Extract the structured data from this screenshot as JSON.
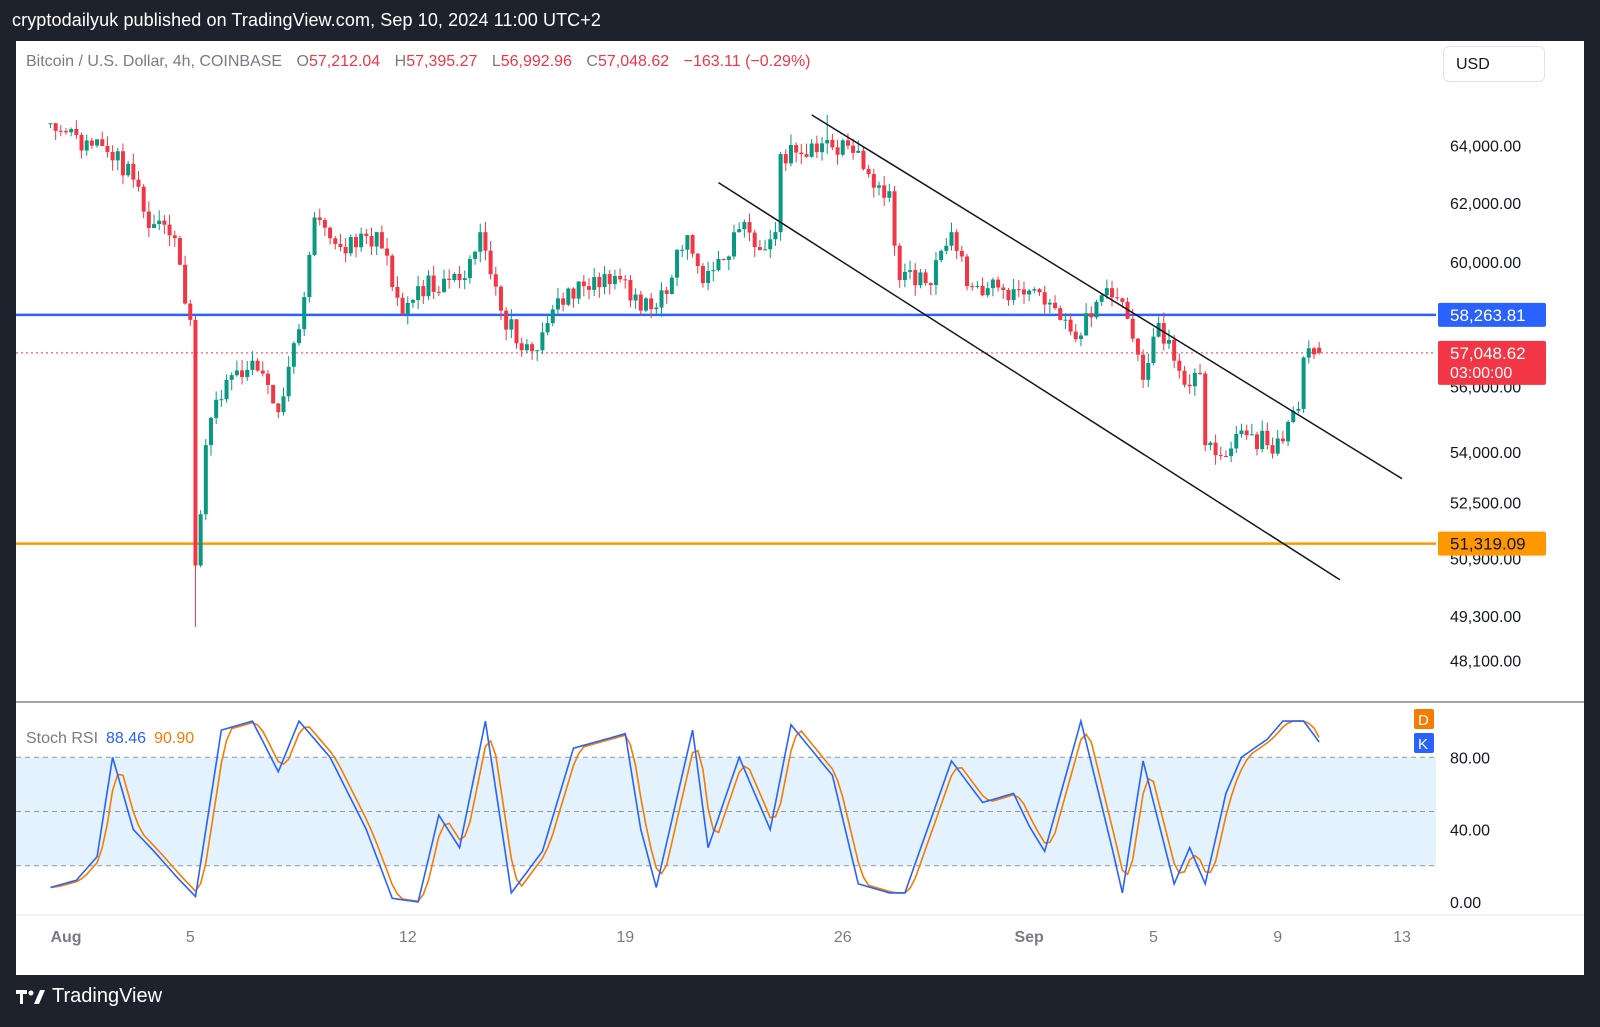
{
  "header": {
    "published_text": "cryptodailyuk published on TradingView.com, Sep 10, 2024 11:00 UTC+2"
  },
  "legend": {
    "symbol": "Bitcoin / U.S. Dollar, 4h, COINBASE",
    "open_label": "O",
    "open": "57,212.04",
    "high_label": "H",
    "high": "57,395.27",
    "low_label": "L",
    "low": "56,992.96",
    "close_label": "C",
    "close": "57,048.62",
    "change": "−163.11 (−0.29%)"
  },
  "currency_button": {
    "label": "USD"
  },
  "stoch_legend": {
    "name": "Stoch RSI",
    "k_value": "88.46",
    "d_value": "90.90"
  },
  "footer": {
    "brand": "TradingView",
    "logo_icon": "tradingview-logo-icon"
  },
  "colors": {
    "up": "#089981",
    "down": "#f23645",
    "resistance": "#2962ff",
    "support": "#ff9800",
    "k_line": "#2962ff",
    "d_line": "#f57c00",
    "band_fill": "#e3f2fd",
    "page_bg": "#1e222d"
  },
  "chart_data": [
    {
      "type": "candlestick",
      "title": "Bitcoin / U.S. Dollar, 4h, COINBASE",
      "x_ticks": [
        "Aug",
        "5",
        "12",
        "19",
        "26",
        "Sep",
        "5",
        "9",
        "13"
      ],
      "y_ticks": [
        "64,000.00",
        "62,000.00",
        "60,000.00",
        "58,263.81",
        "57,048.62",
        "56,000.00",
        "54,000.00",
        "52,500.00",
        "51,319.09",
        "50,900.00",
        "49,300.00",
        "48,100.00"
      ],
      "y_tick_values": [
        64000,
        62000,
        60000,
        56000,
        54000,
        52500,
        50900,
        49300,
        48100
      ],
      "ylim": [
        47000,
        66300
      ],
      "y_scale": "log",
      "price_labels": [
        {
          "value": 58263.81,
          "text": "58,263.81",
          "color": "#2962ff"
        },
        {
          "value": 57048.62,
          "text": "57,048.62",
          "sub": "03:00:00",
          "color": "#f23645"
        },
        {
          "value": 51319.09,
          "text": "51,319.09",
          "color": "#ff9800"
        }
      ],
      "horizontal_lines": [
        {
          "name": "resistance",
          "value": 58263.81,
          "color": "#2962ff"
        },
        {
          "name": "support",
          "value": 51319.09,
          "color": "#ff9800"
        },
        {
          "name": "last-price",
          "value": 57048.62,
          "color": "#f23645",
          "style": "dotted"
        }
      ],
      "trend_lines": [
        {
          "name": "channel-upper",
          "from": [
            "Aug 25",
            65100
          ],
          "to": [
            "Sep 13",
            53200
          ]
        },
        {
          "name": "channel-lower",
          "from": [
            "Aug 22",
            62700
          ],
          "to": [
            "Sep 11",
            50300
          ]
        }
      ],
      "anchors": [
        {
          "date": "Jul 31 12:00",
          "price": 64800
        },
        {
          "date": "Aug 1 20:00",
          "price": 64000
        },
        {
          "date": "Aug 2 16:00",
          "price": 63800
        },
        {
          "date": "Aug 3 12:00",
          "price": 61700
        },
        {
          "date": "Aug 4 12:00",
          "price": 60800
        },
        {
          "date": "Aug 5 00:00",
          "price": 58100
        },
        {
          "date": "Aug 5 04:00",
          "price": 50700
        },
        {
          "date": "Aug 5 12:00",
          "price": 54200
        },
        {
          "date": "Aug 6 04:00",
          "price": 56200
        },
        {
          "date": "Aug 7 00:00",
          "price": 56800
        },
        {
          "date": "Aug 7 20:00",
          "price": 55200
        },
        {
          "date": "Aug 8 12:00",
          "price": 57800
        },
        {
          "date": "Aug 9 00:00",
          "price": 61500
        },
        {
          "date": "Aug 9 20:00",
          "price": 60500
        },
        {
          "date": "Aug 11 00:00",
          "price": 61000
        },
        {
          "date": "Aug 11 20:00",
          "price": 58300
        },
        {
          "date": "Aug 12 08:00",
          "price": 59200
        },
        {
          "date": "Aug 13 16:00",
          "price": 59400
        },
        {
          "date": "Aug 14 08:00",
          "price": 61000
        },
        {
          "date": "Aug 15 00:00",
          "price": 58400
        },
        {
          "date": "Aug 16 00:00",
          "price": 57100
        },
        {
          "date": "Aug 16 20:00",
          "price": 58800
        },
        {
          "date": "Aug 18 00:00",
          "price": 59500
        },
        {
          "date": "Aug 19 00:00",
          "price": 59400
        },
        {
          "date": "Aug 19 12:00",
          "price": 58400
        },
        {
          "date": "Aug 20 00:00",
          "price": 58500
        },
        {
          "date": "Aug 21 00:00",
          "price": 60900
        },
        {
          "date": "Aug 21 12:00",
          "price": 59300
        },
        {
          "date": "Aug 22 00:00",
          "price": 60100
        },
        {
          "date": "Aug 22 16:00",
          "price": 61100
        },
        {
          "date": "Aug 23 08:00",
          "price": 60400
        },
        {
          "date": "Aug 23 20:00",
          "price": 61000
        },
        {
          "date": "Aug 24 00:00",
          "price": 63700
        },
        {
          "date": "Aug 25 12:00",
          "price": 64200
        },
        {
          "date": "Aug 26 04:00",
          "price": 64000
        },
        {
          "date": "Aug 26 20:00",
          "price": 63000
        },
        {
          "date": "Aug 27 12:00",
          "price": 62400
        },
        {
          "date": "Aug 27 20:00",
          "price": 59400
        },
        {
          "date": "Aug 28 16:00",
          "price": 59300
        },
        {
          "date": "Aug 29 12:00",
          "price": 61000
        },
        {
          "date": "Aug 30 00:00",
          "price": 59200
        },
        {
          "date": "Aug 31 12:00",
          "price": 59100
        },
        {
          "date": "Sep 1 12:00",
          "price": 58600
        },
        {
          "date": "Sep 2 00:00",
          "price": 58100
        },
        {
          "date": "Sep 2 16:00",
          "price": 57600
        },
        {
          "date": "Sep 3 08:00",
          "price": 58900
        },
        {
          "date": "Sep 3 20:00",
          "price": 58800
        },
        {
          "date": "Sep 4 08:00",
          "price": 57500
        },
        {
          "date": "Sep 4 16:00",
          "price": 56200
        },
        {
          "date": "Sep 5 04:00",
          "price": 58000
        },
        {
          "date": "Sep 5 16:00",
          "price": 56800
        },
        {
          "date": "Sep 6 04:00",
          "price": 56000
        },
        {
          "date": "Sep 6 12:00",
          "price": 56400
        },
        {
          "date": "Sep 6 16:00",
          "price": 54200
        },
        {
          "date": "Sep 7 00:00",
          "price": 53900
        },
        {
          "date": "Sep 7 12:00",
          "price": 54100
        },
        {
          "date": "Sep 8 00:00",
          "price": 54500
        },
        {
          "date": "Sep 8 16:00",
          "price": 54200
        },
        {
          "date": "Sep 9 00:00",
          "price": 54400
        },
        {
          "date": "Sep 9 08:00",
          "price": 54900
        },
        {
          "date": "Sep 9 16:00",
          "price": 55300
        },
        {
          "date": "Sep 9 20:00",
          "price": 56900
        },
        {
          "date": "Sep 10 04:00",
          "price": 57000
        },
        {
          "date": "Sep 10 08:00",
          "price": 57048.62
        }
      ],
      "low_wick": 49000,
      "high_wick": 65100
    },
    {
      "type": "line",
      "title": "Stoch RSI",
      "ylim": [
        -5,
        110
      ],
      "y_ticks": [
        "80.00",
        "40.00",
        "0.00"
      ],
      "y_tick_values": [
        80,
        40,
        0
      ],
      "bands": [
        20,
        50,
        80
      ],
      "series": [
        {
          "name": "K",
          "color": "#2962ff",
          "last": 88.46
        },
        {
          "name": "D",
          "color": "#f57c00",
          "last": 90.9
        }
      ],
      "k_points": [
        {
          "date": "Jul 31 12:00",
          "value": 8
        },
        {
          "date": "Aug 1 08:00",
          "value": 12
        },
        {
          "date": "Aug 2 00:00",
          "value": 25
        },
        {
          "date": "Aug 2 12:00",
          "value": 80
        },
        {
          "date": "Aug 3 04:00",
          "value": 40
        },
        {
          "date": "Aug 3 20:00",
          "value": 28
        },
        {
          "date": "Aug 4 12:00",
          "value": 15
        },
        {
          "date": "Aug 5 04:00",
          "value": 3
        },
        {
          "date": "Aug 6 00:00",
          "value": 95
        },
        {
          "date": "Aug 7 00:00",
          "value": 100
        },
        {
          "date": "Aug 7 20:00",
          "value": 72
        },
        {
          "date": "Aug 8 12:00",
          "value": 100
        },
        {
          "date": "Aug 9 12:00",
          "value": 80
        },
        {
          "date": "Aug 10 16:00",
          "value": 40
        },
        {
          "date": "Aug 11 12:00",
          "value": 2
        },
        {
          "date": "Aug 12 08:00",
          "value": 0
        },
        {
          "date": "Aug 13 00:00",
          "value": 48
        },
        {
          "date": "Aug 13 16:00",
          "value": 30
        },
        {
          "date": "Aug 14 12:00",
          "value": 100
        },
        {
          "date": "Aug 15 08:00",
          "value": 5
        },
        {
          "date": "Aug 16 08:00",
          "value": 28
        },
        {
          "date": "Aug 17 08:00",
          "value": 85
        },
        {
          "date": "Aug 19 00:00",
          "value": 93
        },
        {
          "date": "Aug 19 12:00",
          "value": 40
        },
        {
          "date": "Aug 20 00:00",
          "value": 8
        },
        {
          "date": "Aug 21 04:00",
          "value": 95
        },
        {
          "date": "Aug 21 16:00",
          "value": 30
        },
        {
          "date": "Aug 22 16:00",
          "value": 80
        },
        {
          "date": "Aug 23 16:00",
          "value": 40
        },
        {
          "date": "Aug 24 08:00",
          "value": 98
        },
        {
          "date": "Aug 25 16:00",
          "value": 70
        },
        {
          "date": "Aug 26 12:00",
          "value": 10
        },
        {
          "date": "Aug 27 12:00",
          "value": 5
        },
        {
          "date": "Aug 28 00:00",
          "value": 5
        },
        {
          "date": "Aug 29 12:00",
          "value": 78
        },
        {
          "date": "Aug 30 12:00",
          "value": 55
        },
        {
          "date": "Aug 31 12:00",
          "value": 60
        },
        {
          "date": "Sep 1 00:00",
          "value": 42
        },
        {
          "date": "Sep 1 12:00",
          "value": 28
        },
        {
          "date": "Sep 2 16:00",
          "value": 100
        },
        {
          "date": "Sep 3 16:00",
          "value": 30
        },
        {
          "date": "Sep 4 00:00",
          "value": 5
        },
        {
          "date": "Sep 4 16:00",
          "value": 78
        },
        {
          "date": "Sep 5 16:00",
          "value": 10
        },
        {
          "date": "Sep 6 04:00",
          "value": 30
        },
        {
          "date": "Sep 6 16:00",
          "value": 10
        },
        {
          "date": "Sep 7 08:00",
          "value": 60
        },
        {
          "date": "Sep 7 20:00",
          "value": 80
        },
        {
          "date": "Sep 8 16:00",
          "value": 90
        },
        {
          "date": "Sep 9 04:00",
          "value": 100
        },
        {
          "date": "Sep 9 20:00",
          "value": 100
        },
        {
          "date": "Sep 10 08:00",
          "value": 88.46
        }
      ]
    }
  ]
}
